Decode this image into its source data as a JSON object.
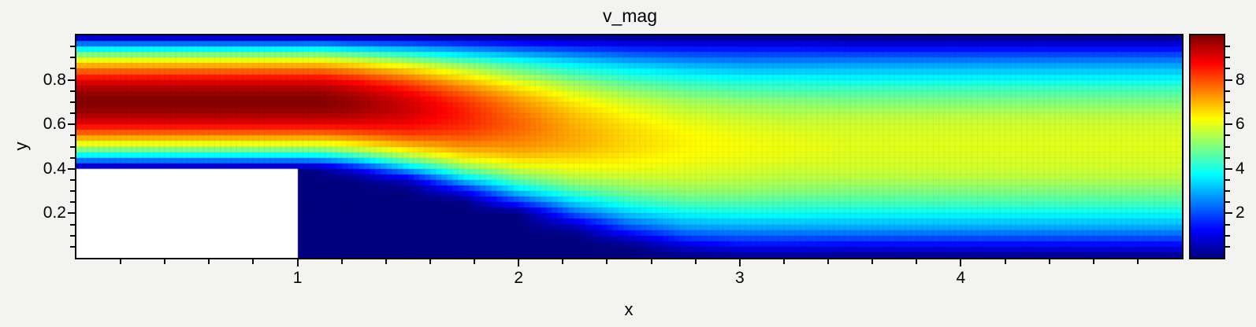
{
  "figure": {
    "title": "v_mag",
    "background": "#f3f3f2",
    "frame_color": "#0a0a0a",
    "text_color": "#000000"
  },
  "x_axis": {
    "label": "x",
    "range": [
      0,
      5
    ],
    "major_ticks": [
      1,
      2,
      3,
      4
    ],
    "minor_step": 0.2
  },
  "y_axis": {
    "label": "y",
    "range": [
      0,
      1
    ],
    "major_ticks": [
      0.2,
      0.4,
      0.6,
      0.8
    ],
    "minor_step": 0.05
  },
  "colorbar": {
    "range": [
      0,
      10
    ],
    "major_ticks": [
      2,
      4,
      6,
      8
    ],
    "minor_step": 0.5,
    "colormap": "jet"
  },
  "chart_data": {
    "type": "heatmap",
    "title": "v_mag",
    "xlabel": "x",
    "ylabel": "y",
    "x_range": [
      0,
      5
    ],
    "y_range": [
      0,
      1
    ],
    "value_range": [
      0,
      10
    ],
    "colormap": "jet",
    "legend_position": "right-colorbar",
    "grid": "faint-mesh",
    "cell_size": 0.025,
    "obstacle_mask": {
      "x": [
        0,
        1
      ],
      "y": [
        0,
        0.4
      ],
      "color": "#ffffff"
    },
    "grid_x": [
      0,
      0.25,
      0.5,
      0.75,
      1,
      1.1,
      1.25,
      1.5,
      1.75,
      2,
      2.25,
      2.5,
      2.75,
      3,
      3.25,
      3.5,
      4,
      4.5,
      5
    ],
    "grid_y": [
      0,
      0.05,
      0.1,
      0.15,
      0.2,
      0.25,
      0.3,
      0.35,
      0.4,
      0.45,
      0.5,
      0.55,
      0.6,
      0.65,
      0.7,
      0.75,
      0.8,
      0.85,
      0.9,
      0.95,
      1
    ],
    "values": [
      [
        0,
        0,
        0,
        0,
        0,
        0,
        0,
        0,
        0,
        0,
        0,
        0,
        0,
        0,
        0,
        0,
        0,
        0,
        0
      ],
      [
        0,
        0,
        0,
        0,
        0,
        0,
        0,
        0,
        0,
        0,
        0,
        0,
        0.8,
        1.2,
        1.2,
        1.1,
        1.1,
        1.1,
        1.1
      ],
      [
        0,
        0,
        0,
        0,
        0,
        0,
        0,
        0,
        0,
        0,
        0,
        1.0,
        2.0,
        2.2,
        2.2,
        2.2,
        2.2,
        2.2,
        2.2
      ],
      [
        0,
        0,
        0,
        0,
        0,
        0,
        0,
        0,
        0,
        0,
        0.7,
        2.3,
        3.0,
        3.1,
        3.1,
        3.1,
        3.1,
        3.1,
        3.1
      ],
      [
        0,
        0,
        0,
        0,
        0,
        0,
        0,
        0,
        0,
        0,
        2.2,
        3.3,
        3.8,
        3.9,
        3.9,
        3.8,
        3.8,
        3.8,
        3.8
      ],
      [
        0,
        0,
        0,
        0,
        0,
        0,
        0,
        0,
        0,
        1.8,
        3.4,
        4.2,
        4.6,
        4.6,
        4.5,
        4.5,
        4.5,
        4.5,
        4.5
      ],
      [
        0,
        0,
        0,
        0,
        0,
        0,
        0,
        0,
        1.2,
        3.4,
        4.5,
        5.0,
        5.2,
        5.2,
        5.1,
        5.0,
        5.0,
        5.0,
        5.0
      ],
      [
        0,
        0,
        0,
        0,
        0,
        0,
        0,
        0.7,
        3.2,
        4.7,
        5.4,
        5.6,
        5.7,
        5.6,
        5.5,
        5.5,
        5.5,
        5.5,
        5.5
      ],
      [
        0,
        0,
        0,
        0,
        0,
        0.2,
        1.1,
        3.1,
        4.9,
        5.8,
        6.1,
        6.1,
        6.0,
        5.9,
        5.8,
        5.8,
        5.8,
        5.8,
        5.8
      ],
      [
        3.1,
        3.1,
        3.1,
        3.1,
        3.1,
        3.2,
        3.8,
        5.2,
        6.3,
        6.7,
        6.6,
        6.4,
        6.2,
        6.1,
        6.0,
        5.9,
        5.9,
        5.9,
        5.9
      ],
      [
        5.6,
        5.6,
        5.6,
        5.6,
        5.6,
        5.6,
        6.0,
        6.8,
        7.3,
        7.3,
        7.0,
        6.6,
        6.3,
        6.2,
        6.1,
        6.0,
        6.0,
        6.0,
        6.0
      ],
      [
        7.5,
        7.5,
        7.5,
        7.5,
        7.5,
        7.5,
        7.7,
        8.1,
        8.0,
        7.6,
        7.1,
        6.6,
        6.3,
        6.1,
        6.0,
        5.9,
        5.9,
        5.9,
        5.9
      ],
      [
        8.9,
        8.9,
        8.9,
        8.9,
        8.9,
        8.9,
        8.9,
        8.8,
        8.4,
        7.8,
        7.0,
        6.5,
        6.1,
        5.9,
        5.8,
        5.8,
        5.8,
        5.8,
        5.8
      ],
      [
        9.7,
        9.7,
        9.7,
        9.7,
        9.7,
        9.7,
        9.6,
        9.2,
        8.5,
        7.6,
        6.8,
        6.2,
        5.8,
        5.6,
        5.5,
        5.5,
        5.5,
        5.5,
        5.5
      ],
      [
        10,
        10,
        10,
        10,
        10,
        10,
        9.8,
        9.2,
        8.3,
        7.3,
        6.4,
        5.8,
        5.4,
        5.2,
        5.1,
        5.0,
        5.0,
        5.0,
        5.0
      ],
      [
        9.7,
        9.7,
        9.7,
        9.7,
        9.7,
        9.7,
        9.4,
        8.7,
        7.7,
        6.7,
        5.8,
        5.2,
        4.8,
        4.6,
        4.5,
        4.5,
        4.5,
        4.5,
        4.5
      ],
      [
        8.9,
        8.9,
        8.9,
        8.9,
        8.9,
        8.9,
        8.6,
        7.8,
        6.8,
        5.8,
        5.0,
        4.4,
        4.1,
        3.9,
        3.9,
        3.8,
        3.8,
        3.8,
        3.8
      ],
      [
        7.5,
        7.5,
        7.5,
        7.5,
        7.5,
        7.5,
        7.2,
        6.5,
        5.6,
        4.7,
        4.0,
        3.6,
        3.3,
        3.1,
        3.1,
        3.1,
        3.1,
        3.1,
        3.1
      ],
      [
        5.6,
        5.6,
        5.6,
        5.6,
        5.6,
        5.6,
        5.3,
        4.7,
        4.0,
        3.4,
        2.9,
        2.5,
        2.3,
        2.2,
        2.2,
        2.2,
        2.2,
        2.2,
        2.2
      ],
      [
        3.1,
        3.1,
        3.1,
        3.1,
        3.1,
        3.2,
        2.9,
        2.6,
        2.2,
        1.8,
        1.5,
        1.3,
        1.2,
        1.2,
        1.2,
        1.1,
        1.1,
        1.1,
        1.1
      ],
      [
        0,
        0,
        0,
        0,
        0,
        0,
        0,
        0,
        0,
        0,
        0,
        0,
        0,
        0,
        0,
        0,
        0,
        0,
        0
      ]
    ]
  }
}
